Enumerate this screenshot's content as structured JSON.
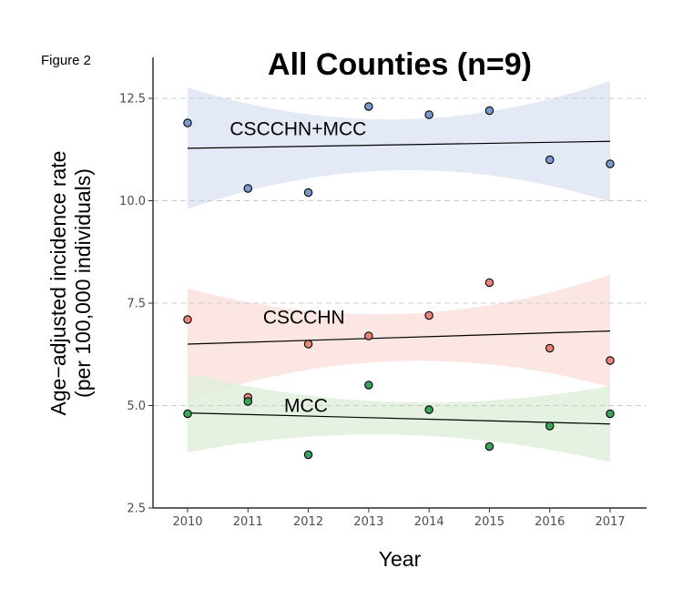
{
  "figure_label": "Figure 2",
  "chart_data": {
    "type": "scatter",
    "title": "All Counties (n=9)",
    "xlabel": "Year",
    "ylabel_lines": [
      "Age−adjusted incidence rate",
      "(per 100,000 individuals)"
    ],
    "x": [
      2010,
      2011,
      2012,
      2013,
      2014,
      2015,
      2016,
      2017
    ],
    "x_tick_labels": [
      "2010",
      "2011",
      "2012",
      "2013",
      "2014",
      "2015",
      "2016",
      "2017"
    ],
    "ylim": [
      2.5,
      13.5
    ],
    "y_ticks": [
      2.5,
      5.0,
      7.5,
      10.0,
      12.5
    ],
    "y_tick_labels": [
      "2.5",
      "5.0",
      "7.5",
      "10.0",
      "12.5"
    ],
    "grid": "dashed horizontal at y ticks",
    "series": [
      {
        "name": "CSCCHN+MCC",
        "point_color": "#7b98cc",
        "band_color": "#dfe6f3",
        "values": [
          11.9,
          10.3,
          10.2,
          12.3,
          12.1,
          12.2,
          11.0,
          10.9
        ],
        "trend": [
          11.28,
          11.45
        ],
        "ci_upper": [
          12.75,
          12.93
        ],
        "ci_lower": [
          9.78,
          9.98
        ],
        "label_anchor": [
          2010.7,
          11.6
        ]
      },
      {
        "name": "CSCCHN",
        "point_color": "#e8847a",
        "band_color": "#fbe2df",
        "values": [
          7.1,
          5.2,
          6.5,
          6.7,
          7.2,
          8.0,
          6.4,
          6.1
        ],
        "trend": [
          6.5,
          6.82
        ],
        "ci_upper": [
          7.85,
          8.2
        ],
        "ci_lower": [
          5.12,
          5.45
        ],
        "label_anchor": [
          2011.25,
          7.0
        ]
      },
      {
        "name": "MCC",
        "point_color": "#3aa35c",
        "band_color": "#e1efdc",
        "values": [
          4.8,
          5.1,
          3.8,
          5.5,
          4.9,
          4.0,
          4.5,
          4.8
        ],
        "trend": [
          4.82,
          4.55
        ],
        "ci_upper": [
          5.78,
          5.48
        ],
        "ci_lower": [
          3.85,
          3.62
        ],
        "label_anchor": [
          2011.6,
          4.85
        ]
      }
    ]
  }
}
